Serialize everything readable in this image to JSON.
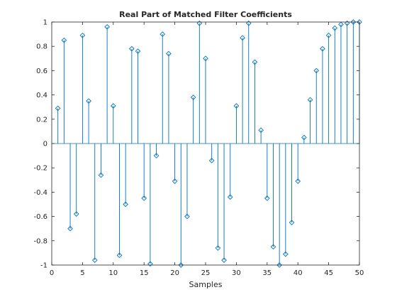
{
  "chart_data": {
    "type": "stem",
    "title": "Real Part of Matched Filter Coefficients",
    "xlabel": "Samples",
    "ylabel": "",
    "xlim": [
      0,
      50
    ],
    "ylim": [
      -1,
      1
    ],
    "grid": false,
    "xticks": [
      0,
      5,
      10,
      15,
      20,
      25,
      30,
      35,
      40,
      45,
      50
    ],
    "yticks": [
      1,
      0.8,
      0.6,
      0.4,
      0.2,
      0,
      -0.2,
      -0.4,
      -0.6,
      -0.8,
      -1
    ],
    "xtick_labels": [
      "0",
      "5",
      "10",
      "15",
      "20",
      "25",
      "30",
      "35",
      "40",
      "45",
      "50"
    ],
    "ytick_labels": [
      "1",
      "0.8",
      "0.6",
      "0.4",
      "0.2",
      "0",
      "-0.2",
      "-0.4",
      "-0.6",
      "-0.8",
      "-1"
    ],
    "series_color": "#0072bd",
    "marker": "diamond",
    "x": [
      1,
      2,
      3,
      4,
      5,
      6,
      7,
      8,
      9,
      10,
      11,
      12,
      13,
      14,
      15,
      16,
      17,
      18,
      19,
      20,
      21,
      22,
      23,
      24,
      25,
      26,
      27,
      28,
      29,
      30,
      31,
      32,
      33,
      34,
      35,
      36,
      37,
      38,
      39,
      40,
      41,
      42,
      43,
      44,
      45,
      46,
      47,
      48,
      49,
      50
    ],
    "values": [
      0.29,
      0.85,
      -0.7,
      -0.58,
      0.89,
      0.35,
      -0.96,
      -0.26,
      0.96,
      0.31,
      -0.92,
      -0.5,
      0.78,
      0.76,
      -0.45,
      -0.99,
      -0.1,
      0.9,
      0.74,
      -0.31,
      -1.0,
      -0.6,
      0.38,
      0.99,
      0.7,
      -0.14,
      -0.86,
      -0.96,
      -0.44,
      0.31,
      0.87,
      0.99,
      0.67,
      0.11,
      -0.45,
      -0.85,
      -1.0,
      -0.91,
      -0.65,
      -0.31,
      0.05,
      0.36,
      0.6,
      0.78,
      0.89,
      0.95,
      0.98,
      0.99,
      1.0,
      1.0
    ]
  }
}
